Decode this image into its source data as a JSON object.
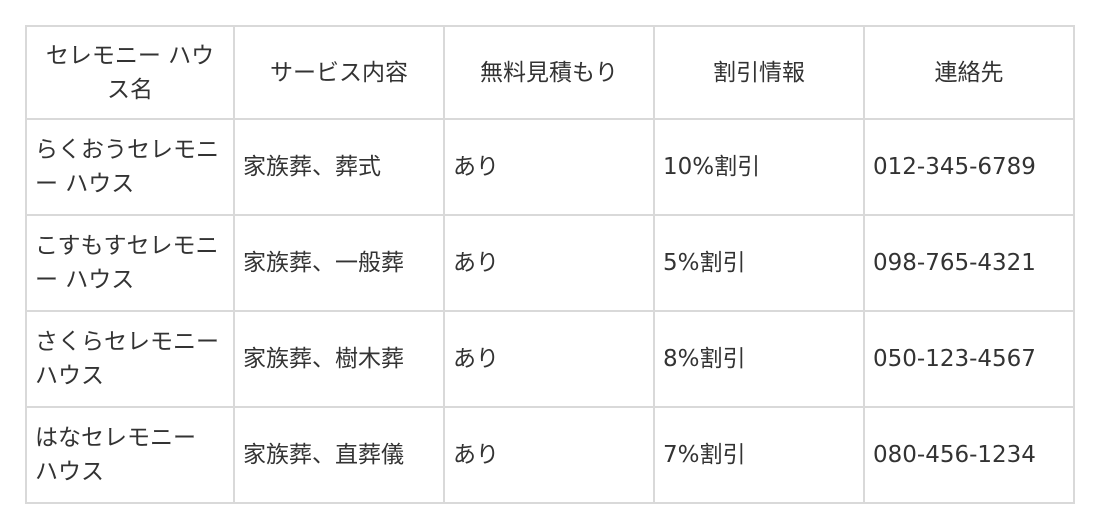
{
  "table": {
    "headers": [
      "セレモニー ハウス名",
      "サービス内容",
      "無料見積もり",
      "割引情報",
      "連絡先"
    ],
    "rows": [
      [
        "らくおうセレモニー ハウス",
        "家族葬、葬式",
        "あり",
        "10%割引",
        "012-345-6789"
      ],
      [
        "こすもすセレモニー ハウス",
        "家族葬、一般葬",
        "あり",
        "5%割引",
        "098-765-4321"
      ],
      [
        "さくらセレモニー ハウス",
        "家族葬、樹木葬",
        "あり",
        "8%割引",
        "050-123-4567"
      ],
      [
        "はなセレモニー ハウス",
        "家族葬、直葬儀",
        "あり",
        "7%割引",
        "080-456-1234"
      ]
    ]
  }
}
